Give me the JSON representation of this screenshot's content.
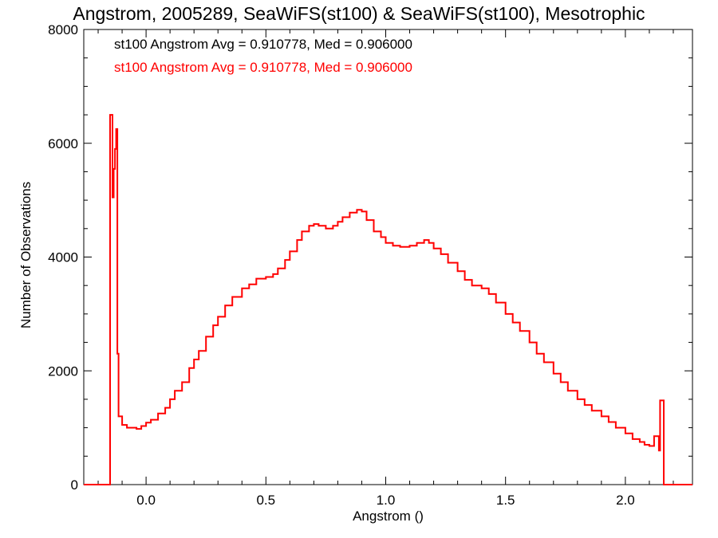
{
  "chart_data": {
    "type": "histogram",
    "title": "Angstrom, 2005289, SeaWiFS(st100) & SeaWiFS(st100), Mesotrophic",
    "xlabel": "Angstrom ()",
    "ylabel": "Number of Observations",
    "xlim": [
      -0.26,
      2.28
    ],
    "ylim": [
      0,
      8000
    ],
    "xticks": [
      0.0,
      0.5,
      1.0,
      1.5,
      2.0
    ],
    "xtick_labels": [
      "0.0",
      "0.5",
      "1.0",
      "1.5",
      "2.0"
    ],
    "yticks": [
      0,
      2000,
      4000,
      6000,
      8000
    ],
    "ytick_labels": [
      "0",
      "2000",
      "4000",
      "6000",
      "8000"
    ],
    "annotations": [
      {
        "text": "st100 Angstrom Avg = 0.910778, Med = 0.906000",
        "color": "#000000"
      },
      {
        "text": "st100 Angstrom Avg = 0.910778, Med = 0.906000",
        "color": "#ff0000"
      }
    ],
    "series": [
      {
        "color": "#ff0000",
        "points": [
          [
            -0.26,
            0
          ],
          [
            -0.15,
            0
          ],
          [
            -0.15,
            6500
          ],
          [
            -0.14,
            5050
          ],
          [
            -0.135,
            5550
          ],
          [
            -0.13,
            5900
          ],
          [
            -0.125,
            6250
          ],
          [
            -0.12,
            2300
          ],
          [
            -0.115,
            1200
          ],
          [
            -0.1,
            1050
          ],
          [
            -0.08,
            1000
          ],
          [
            -0.06,
            1000
          ],
          [
            -0.04,
            980
          ],
          [
            -0.02,
            1030
          ],
          [
            0.0,
            1090
          ],
          [
            0.02,
            1140
          ],
          [
            0.05,
            1250
          ],
          [
            0.08,
            1350
          ],
          [
            0.1,
            1500
          ],
          [
            0.12,
            1650
          ],
          [
            0.15,
            1800
          ],
          [
            0.18,
            2050
          ],
          [
            0.2,
            2200
          ],
          [
            0.22,
            2350
          ],
          [
            0.25,
            2600
          ],
          [
            0.28,
            2800
          ],
          [
            0.3,
            2950
          ],
          [
            0.33,
            3150
          ],
          [
            0.36,
            3300
          ],
          [
            0.4,
            3450
          ],
          [
            0.43,
            3520
          ],
          [
            0.46,
            3620
          ],
          [
            0.5,
            3650
          ],
          [
            0.53,
            3700
          ],
          [
            0.55,
            3800
          ],
          [
            0.58,
            3950
          ],
          [
            0.6,
            4100
          ],
          [
            0.63,
            4300
          ],
          [
            0.65,
            4450
          ],
          [
            0.68,
            4550
          ],
          [
            0.7,
            4580
          ],
          [
            0.72,
            4550
          ],
          [
            0.75,
            4500
          ],
          [
            0.78,
            4550
          ],
          [
            0.8,
            4620
          ],
          [
            0.82,
            4700
          ],
          [
            0.85,
            4780
          ],
          [
            0.88,
            4830
          ],
          [
            0.9,
            4800
          ],
          [
            0.92,
            4650
          ],
          [
            0.95,
            4450
          ],
          [
            0.98,
            4350
          ],
          [
            1.0,
            4250
          ],
          [
            1.03,
            4200
          ],
          [
            1.06,
            4180
          ],
          [
            1.1,
            4200
          ],
          [
            1.13,
            4250
          ],
          [
            1.16,
            4300
          ],
          [
            1.18,
            4250
          ],
          [
            1.2,
            4150
          ],
          [
            1.23,
            4050
          ],
          [
            1.26,
            3900
          ],
          [
            1.3,
            3750
          ],
          [
            1.33,
            3600
          ],
          [
            1.36,
            3500
          ],
          [
            1.4,
            3450
          ],
          [
            1.43,
            3350
          ],
          [
            1.46,
            3200
          ],
          [
            1.5,
            3000
          ],
          [
            1.53,
            2850
          ],
          [
            1.56,
            2700
          ],
          [
            1.6,
            2500
          ],
          [
            1.63,
            2300
          ],
          [
            1.66,
            2150
          ],
          [
            1.7,
            1950
          ],
          [
            1.73,
            1800
          ],
          [
            1.76,
            1650
          ],
          [
            1.8,
            1500
          ],
          [
            1.83,
            1400
          ],
          [
            1.86,
            1300
          ],
          [
            1.9,
            1200
          ],
          [
            1.93,
            1100
          ],
          [
            1.96,
            1000
          ],
          [
            2.0,
            900
          ],
          [
            2.03,
            800
          ],
          [
            2.06,
            750
          ],
          [
            2.08,
            700
          ],
          [
            2.1,
            680
          ],
          [
            2.12,
            850
          ],
          [
            2.14,
            600
          ],
          [
            2.145,
            1480
          ],
          [
            2.16,
            0
          ],
          [
            2.28,
            0
          ]
        ]
      }
    ]
  }
}
